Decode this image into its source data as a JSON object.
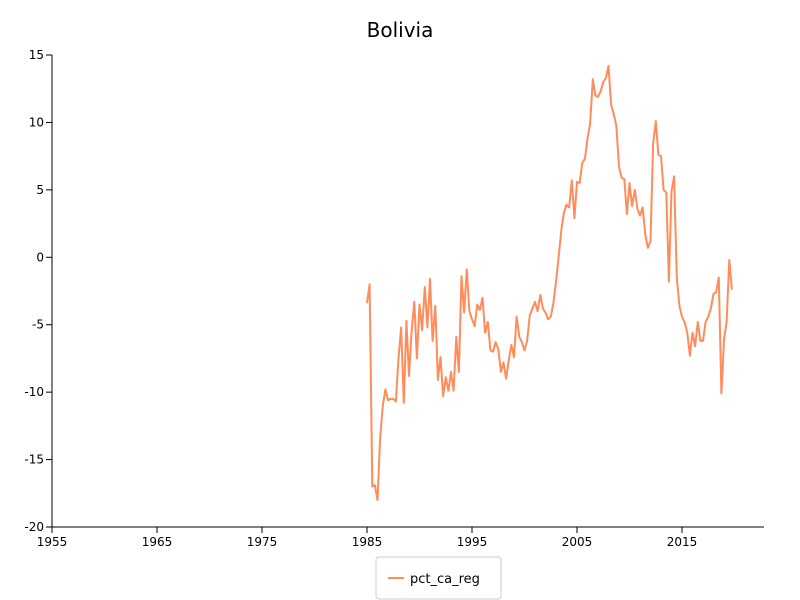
{
  "chart_data": {
    "type": "line",
    "title": "Bolivia",
    "xlabel": "",
    "ylabel": "",
    "xlim": [
      1955,
      2022
    ],
    "ylim": [
      -20,
      15
    ],
    "xticks": [
      1955,
      1965,
      1975,
      1985,
      1995,
      2005,
      2015
    ],
    "yticks": [
      -20,
      -15,
      -10,
      -5,
      0,
      5,
      10,
      15
    ],
    "grid": false,
    "legend_position": "bottom-center",
    "series": [
      {
        "name": "pct_ca_reg",
        "color": "#ff8c5a",
        "x": [
          1985.0,
          1985.25,
          1985.5,
          1985.75,
          1986.0,
          1986.25,
          1986.5,
          1986.75,
          1987.0,
          1987.25,
          1987.5,
          1987.75,
          1988.0,
          1988.25,
          1988.5,
          1988.75,
          1989.0,
          1989.25,
          1989.5,
          1989.75,
          1990.0,
          1990.25,
          1990.5,
          1990.75,
          1991.0,
          1991.25,
          1991.5,
          1991.75,
          1992.0,
          1992.25,
          1992.5,
          1992.75,
          1993.0,
          1993.25,
          1993.5,
          1993.75,
          1994.0,
          1994.25,
          1994.5,
          1994.75,
          1995.0,
          1995.25,
          1995.5,
          1995.75,
          1996.0,
          1996.25,
          1996.5,
          1996.75,
          1997.0,
          1997.25,
          1997.5,
          1997.75,
          1998.0,
          1998.25,
          1998.5,
          1998.75,
          1999.0,
          1999.25,
          1999.5,
          1999.75,
          2000.0,
          2000.25,
          2000.5,
          2000.75,
          2001.0,
          2001.25,
          2001.5,
          2001.75,
          2002.0,
          2002.25,
          2002.5,
          2002.75,
          2003.0,
          2003.25,
          2003.5,
          2003.75,
          2004.0,
          2004.25,
          2004.5,
          2004.75,
          2005.0,
          2005.25,
          2005.5,
          2005.75,
          2006.0,
          2006.25,
          2006.5,
          2006.75,
          2007.0,
          2007.25,
          2007.5,
          2007.75,
          2008.0,
          2008.25,
          2008.5,
          2008.75,
          2009.0,
          2009.25,
          2009.5,
          2009.75,
          2010.0,
          2010.25,
          2010.5,
          2010.75,
          2011.0,
          2011.25,
          2011.5,
          2011.75,
          2012.0,
          2012.25,
          2012.5,
          2012.75,
          2013.0,
          2013.25,
          2013.5,
          2013.75,
          2014.0,
          2014.25,
          2014.5,
          2014.75,
          2015.0,
          2015.25,
          2015.5,
          2015.75,
          2016.0,
          2016.25,
          2016.5,
          2016.75,
          2017.0,
          2017.25,
          2017.5,
          2017.75,
          2018.0,
          2018.25,
          2018.5,
          2018.75,
          2019.0,
          2019.25,
          2019.5,
          2019.75
        ],
        "values": [
          -3.4,
          -2.0,
          -17.0,
          -16.9,
          -18.0,
          -13.5,
          -11.0,
          -9.8,
          -10.6,
          -10.5,
          -10.5,
          -10.7,
          -7.5,
          -5.2,
          -10.8,
          -4.7,
          -8.8,
          -5.5,
          -3.3,
          -7.5,
          -3.5,
          -5.4,
          -2.2,
          -5.2,
          -1.6,
          -6.2,
          -3.6,
          -9.1,
          -7.4,
          -10.3,
          -8.9,
          -9.9,
          -8.5,
          -9.9,
          -5.9,
          -8.5,
          -1.4,
          -4.1,
          -0.9,
          -4.0,
          -4.6,
          -5.1,
          -3.5,
          -3.9,
          -3.0,
          -5.6,
          -4.8,
          -6.9,
          -7.0,
          -6.3,
          -6.8,
          -8.5,
          -7.8,
          -9.0,
          -7.6,
          -6.5,
          -7.4,
          -4.4,
          -5.9,
          -6.3,
          -6.9,
          -6.2,
          -4.3,
          -3.8,
          -3.3,
          -4.0,
          -2.8,
          -3.8,
          -4.1,
          -4.6,
          -4.4,
          -3.4,
          -1.8,
          0.0,
          2.0,
          3.3,
          3.9,
          3.7,
          5.7,
          2.9,
          5.6,
          5.5,
          7.0,
          7.3,
          8.8,
          9.9,
          13.2,
          12.0,
          11.9,
          12.3,
          13.0,
          13.3,
          14.2,
          11.3,
          10.6,
          9.7,
          6.7,
          5.9,
          5.8,
          3.2,
          5.5,
          3.8,
          5.0,
          3.6,
          3.1,
          3.7,
          1.7,
          0.7,
          1.2,
          8.4,
          10.1,
          7.6,
          7.5,
          5.0,
          4.8,
          -1.8,
          4.9,
          6.0,
          -1.5,
          -3.6,
          -4.4,
          -4.8,
          -5.6,
          -7.3,
          -5.6,
          -6.6,
          -4.8,
          -6.2,
          -6.2,
          -4.8,
          -4.4,
          -3.8,
          -2.7,
          -2.6,
          -1.5,
          -10.1,
          -6.1,
          -4.8,
          -0.2,
          -2.4
        ]
      }
    ]
  }
}
